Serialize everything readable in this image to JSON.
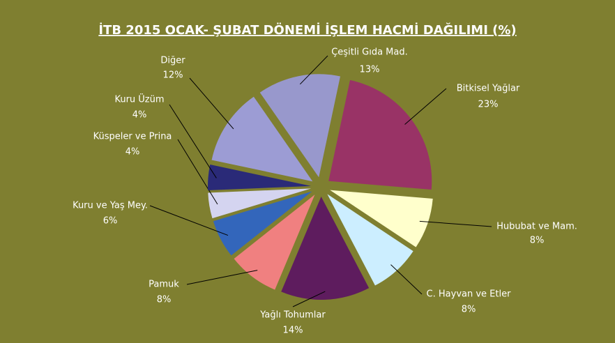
{
  "chart_data": {
    "type": "pie",
    "title": "İTB 2015 OCAK- ŞUBAT DÖNEMİ İŞLEM HACMİ DAĞILIMI (%)",
    "categories": [
      "Bitkisel Yağlar",
      "Hububat ve Mam.",
      "C. Hayvan ve Etler",
      "Yağlı Tohumlar",
      "Pamuk",
      "Kuru ve Yaş Mey.",
      "Küspeler ve Prina",
      "Kuru Üzüm",
      "Diğer",
      "Çeşitli Gıda Mad."
    ],
    "values": [
      23,
      8,
      8,
      14,
      8,
      6,
      4,
      4,
      12,
      13
    ],
    "value_labels": [
      "23%",
      "8%",
      "8%",
      "14%",
      "8%",
      "6%",
      "4%",
      "4%",
      "12%",
      "13%"
    ],
    "colors": [
      "#993366",
      "#ffffcc",
      "#cceeff",
      "#5e1c5e",
      "#f08080",
      "#3366bb",
      "#d4d4f0",
      "#2a2a78",
      "#9c9cd4",
      "#9898cc"
    ]
  }
}
